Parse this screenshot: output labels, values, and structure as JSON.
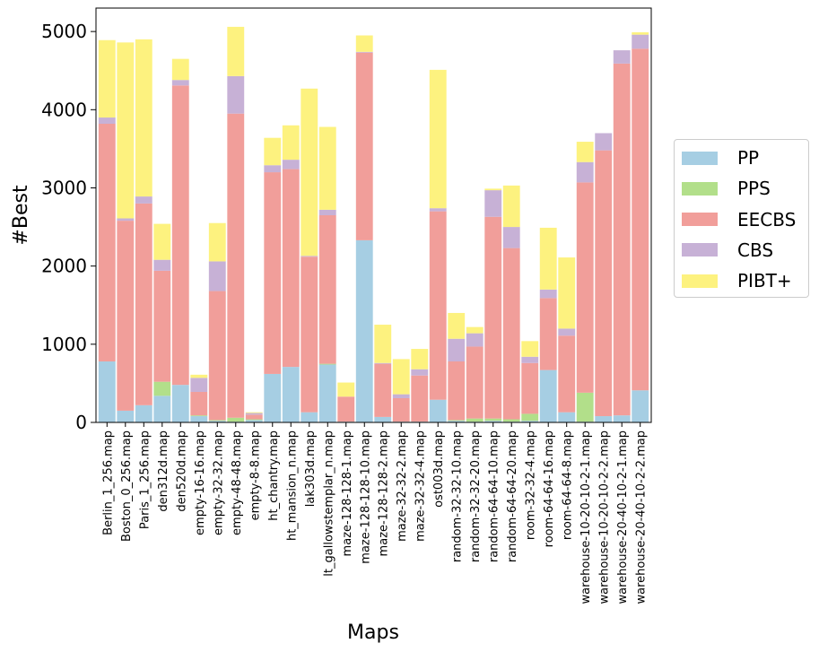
{
  "chart_data": {
    "type": "bar",
    "stacked": true,
    "title": "",
    "xlabel": "Maps",
    "ylabel": "#Best",
    "ylim": [
      0,
      5300
    ],
    "yticks": [
      0,
      1000,
      2000,
      3000,
      4000,
      5000
    ],
    "legend_position": "right",
    "categories": [
      "Berlin_1_256.map",
      "Boston_0_256.map",
      "Paris_1_256.map",
      "den312d.map",
      "den520d.map",
      "empty-16-16.map",
      "empty-32-32.map",
      "empty-48-48.map",
      "empty-8-8.map",
      "ht_chantry.map",
      "ht_mansion_n.map",
      "lak303d.map",
      "lt_gallowstemplar_n.map",
      "maze-128-128-1.map",
      "maze-128-128-10.map",
      "maze-128-128-2.map",
      "maze-32-32-2.map",
      "maze-32-32-4.map",
      "ost003d.map",
      "random-32-32-10.map",
      "random-32-32-20.map",
      "random-64-64-10.map",
      "random-64-64-20.map",
      "room-32-32-4.map",
      "room-64-64-16.map",
      "room-64-64-8.map",
      "warehouse-10-20-10-2-1.map",
      "warehouse-10-20-10-2-2.map",
      "warehouse-20-40-10-2-1.map",
      "warehouse-20-40-10-2-2.map"
    ],
    "series": [
      {
        "name": "PP",
        "color": "#a6cee3",
        "values": [
          780,
          150,
          220,
          340,
          480,
          80,
          20,
          10,
          30,
          620,
          710,
          130,
          740,
          10,
          2330,
          70,
          10,
          10,
          290,
          20,
          10,
          20,
          10,
          20,
          670,
          130,
          10,
          80,
          90,
          410
        ]
      },
      {
        "name": "PPS",
        "color": "#b2df8a",
        "values": [
          0,
          0,
          0,
          180,
          0,
          10,
          10,
          50,
          10,
          0,
          0,
          0,
          10,
          0,
          0,
          0,
          0,
          0,
          0,
          10,
          40,
          30,
          30,
          90,
          0,
          0,
          370,
          0,
          0,
          0
        ]
      },
      {
        "name": "EECBS",
        "color": "#f19e9a",
        "values": [
          3040,
          2430,
          2580,
          1420,
          3830,
          300,
          1650,
          3890,
          60,
          2580,
          2530,
          1990,
          1900,
          320,
          2400,
          680,
          300,
          590,
          2410,
          750,
          920,
          2580,
          2190,
          650,
          920,
          980,
          2690,
          3400,
          4500,
          4370
        ]
      },
      {
        "name": "CBS",
        "color": "#c7b1d6",
        "values": [
          80,
          30,
          90,
          140,
          70,
          180,
          380,
          480,
          20,
          90,
          120,
          10,
          70,
          0,
          10,
          10,
          50,
          80,
          40,
          290,
          170,
          340,
          270,
          80,
          110,
          90,
          260,
          220,
          170,
          180
        ]
      },
      {
        "name": "PIBT+",
        "color": "#fdf27f",
        "values": [
          990,
          2250,
          2010,
          460,
          270,
          40,
          490,
          630,
          10,
          350,
          440,
          2140,
          1060,
          180,
          210,
          490,
          450,
          260,
          1770,
          330,
          80,
          20,
          530,
          200,
          790,
          910,
          260,
          0,
          0,
          30
        ]
      }
    ]
  }
}
